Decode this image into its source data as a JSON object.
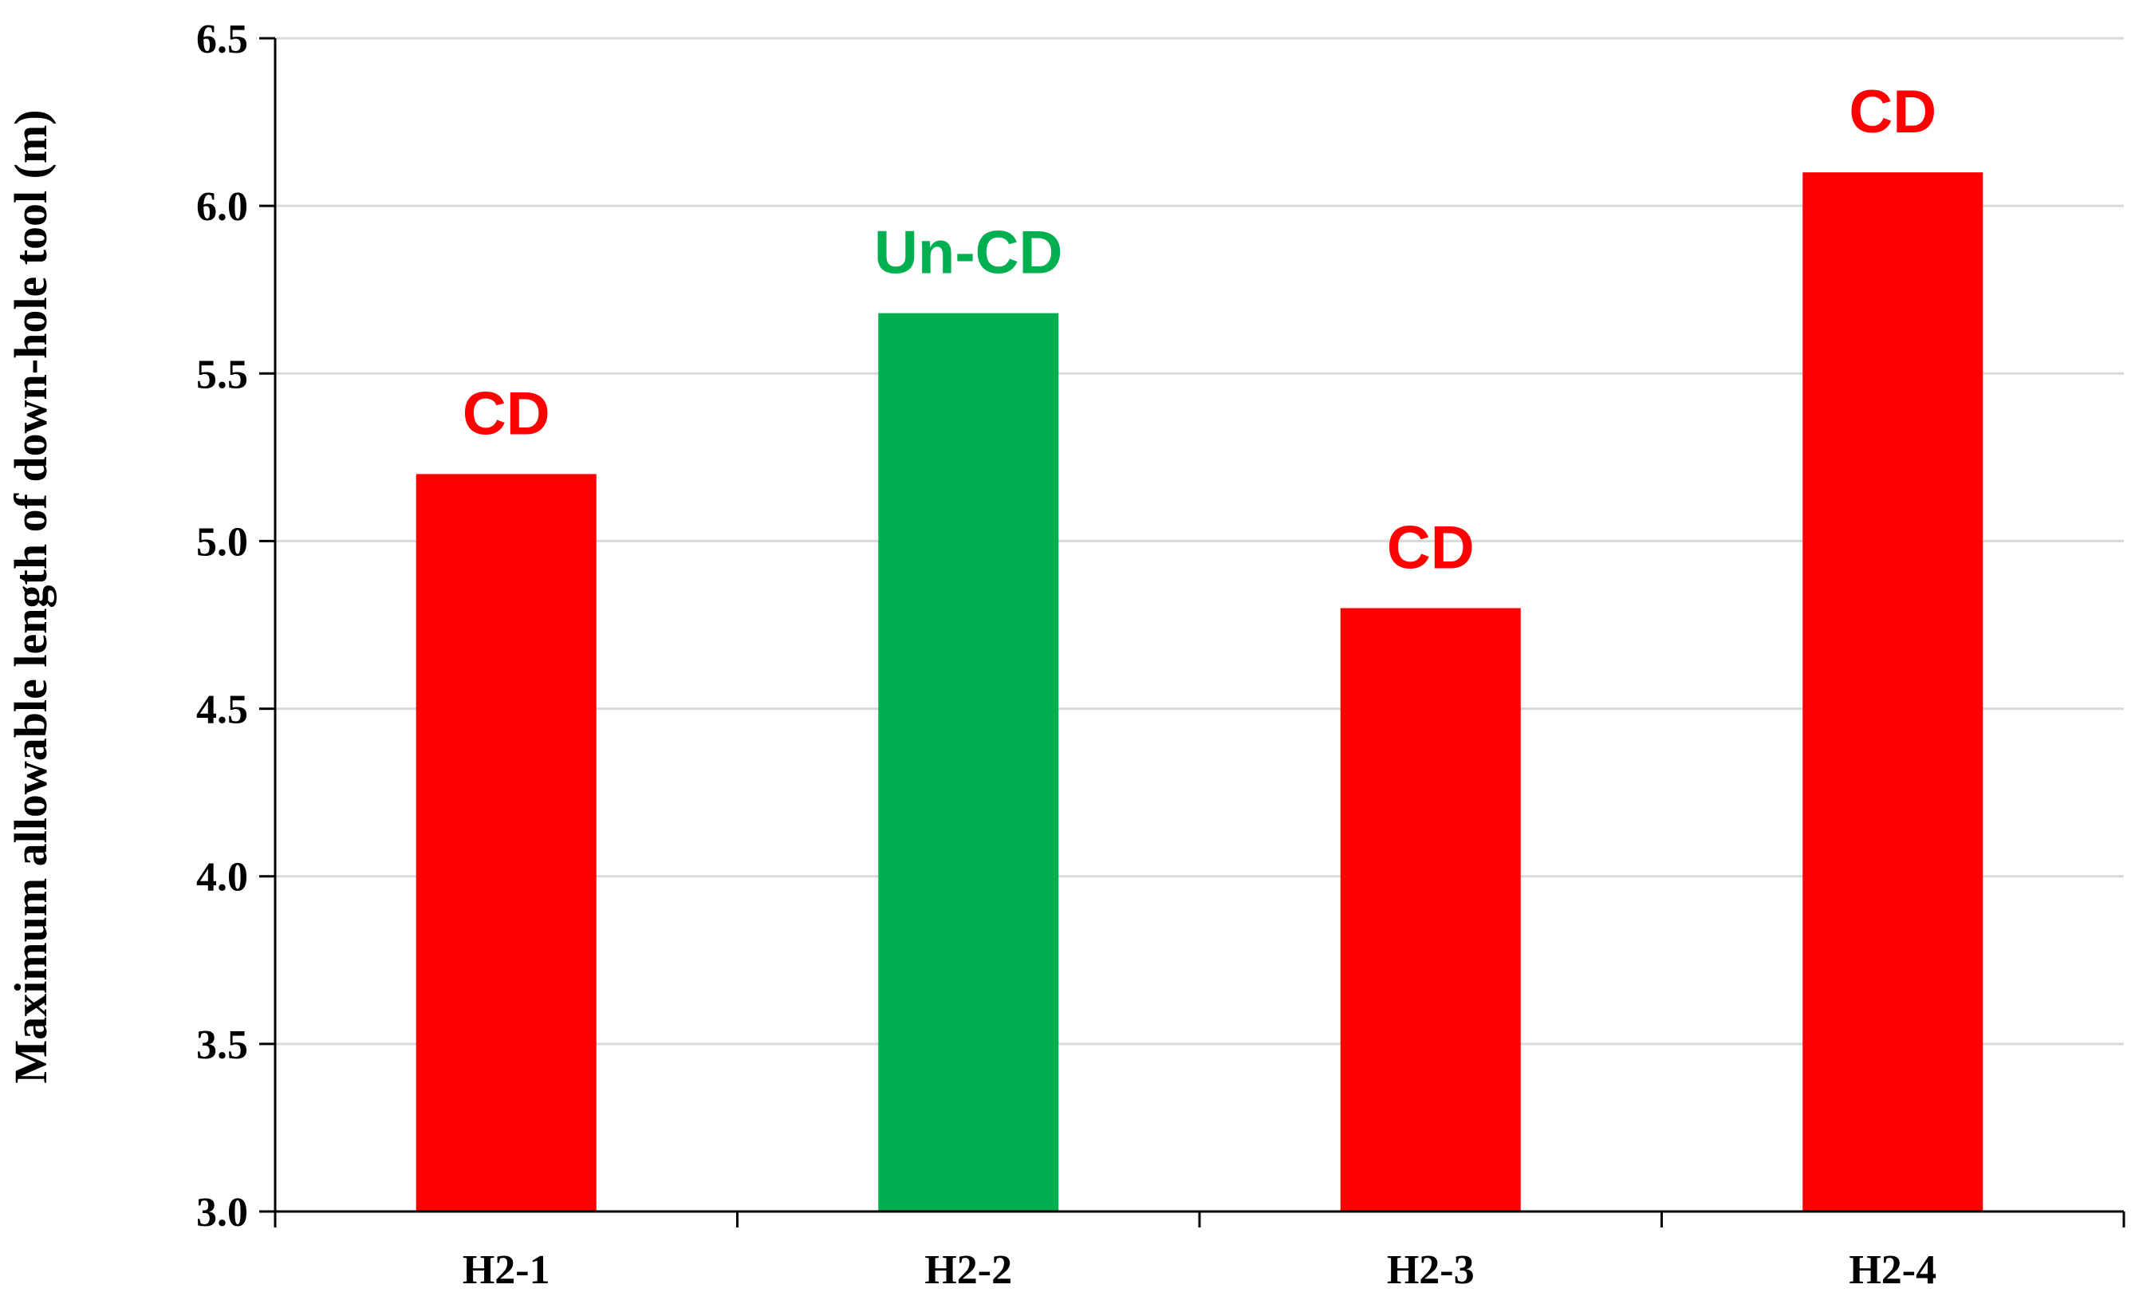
{
  "chart_data": {
    "type": "bar",
    "title": "",
    "xlabel": "",
    "ylabel": "Maximum allowable length of down-hole tool (m)",
    "categories": [
      "H2-1",
      "H2-2",
      "H2-3",
      "H2-4"
    ],
    "values": [
      5.2,
      5.68,
      4.8,
      6.1
    ],
    "bar_labels": [
      "CD",
      "Un-CD",
      "CD",
      "CD"
    ],
    "bar_colors": [
      "#ff0000",
      "#00b050",
      "#ff0000",
      "#ff0000"
    ],
    "label_colors": [
      "#ff0000",
      "#00b050",
      "#ff0000",
      "#ff0000"
    ],
    "ylim": [
      3.0,
      6.5
    ],
    "yticks": [
      "3.0",
      "3.5",
      "4.0",
      "4.5",
      "5.0",
      "5.5",
      "6.0",
      "6.5"
    ],
    "grid": true,
    "legend": "none"
  }
}
